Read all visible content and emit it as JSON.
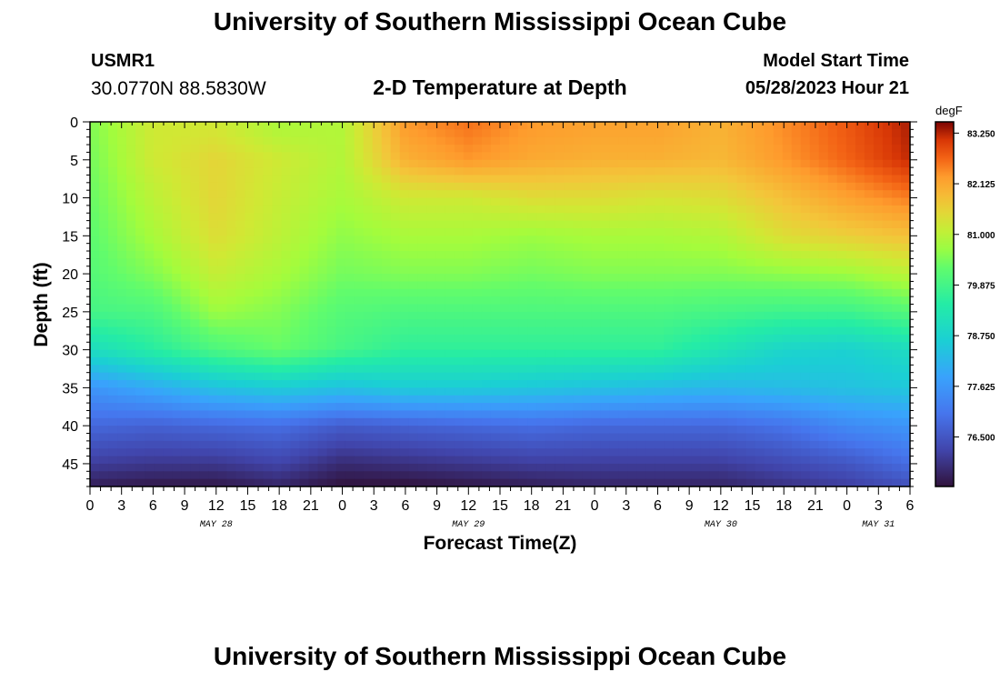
{
  "header": {
    "title": "University of Southern Mississippi Ocean Cube",
    "station_id": "USMR1",
    "station_location": "30.0770N  88.5830W",
    "subtitle": "2-D Temperature at Depth",
    "model_start_label": "Model Start Time",
    "model_start_value": "05/28/2023 Hour 21"
  },
  "footer": {
    "title": "University of Southern Mississippi Ocean Cube"
  },
  "chart_data": {
    "type": "heatmap",
    "xlabel": "Forecast Time(Z)",
    "ylabel": "Depth (ft)",
    "x_tick_labels": [
      "0",
      "3",
      "6",
      "9",
      "12",
      "15",
      "18",
      "21",
      "0",
      "3",
      "6",
      "9",
      "12",
      "15",
      "18",
      "21",
      "0",
      "3",
      "6",
      "9",
      "12",
      "15",
      "18",
      "21",
      "0",
      "3",
      "6"
    ],
    "y_tick_labels": [
      "0",
      "5",
      "10",
      "15",
      "20",
      "25",
      "30",
      "35",
      "40",
      "45"
    ],
    "ylim": [
      0,
      48
    ],
    "day_labels": [
      "MAY 28",
      "MAY 29",
      "MAY 30",
      "MAY 31"
    ],
    "colorbar": {
      "unit": "degF",
      "tick_labels": [
        "83.250",
        "82.125",
        "81.000",
        "79.875",
        "78.750",
        "77.625",
        "76.500"
      ],
      "range": [
        75.4,
        83.5
      ]
    },
    "x_hours": [
      0,
      6,
      12,
      18,
      24,
      30,
      36,
      42,
      48,
      54,
      60,
      66,
      72,
      78
    ],
    "depths": [
      0,
      5,
      10,
      15,
      20,
      25,
      30,
      35,
      40,
      45,
      48
    ],
    "temperature": [
      [
        80.5,
        81.2,
        81.2,
        80.8,
        80.9,
        82.3,
        82.6,
        82.3,
        82.2,
        82.2,
        82.0,
        82.4,
        82.8,
        83.3
      ],
      [
        80.4,
        81.2,
        81.5,
        81.2,
        80.9,
        82.0,
        82.3,
        82.1,
        82.0,
        82.0,
        81.9,
        82.3,
        82.7,
        83.2
      ],
      [
        80.3,
        81.0,
        81.5,
        81.1,
        80.8,
        81.2,
        81.2,
        81.4,
        81.4,
        81.3,
        81.4,
        81.8,
        82.2,
        82.5
      ],
      [
        80.2,
        80.8,
        81.4,
        81.0,
        80.6,
        80.8,
        80.8,
        80.7,
        80.8,
        80.8,
        80.9,
        81.4,
        81.6,
        81.8
      ],
      [
        80.1,
        80.5,
        81.1,
        80.8,
        80.4,
        80.5,
        80.5,
        80.4,
        80.5,
        80.5,
        80.5,
        80.6,
        80.7,
        81.0
      ],
      [
        79.9,
        80.0,
        80.7,
        80.5,
        80.1,
        80.0,
        80.0,
        80.0,
        80.0,
        80.0,
        79.9,
        79.8,
        79.8,
        80.1
      ],
      [
        79.0,
        79.5,
        80.0,
        80.3,
        79.9,
        79.6,
        79.6,
        79.6,
        79.6,
        79.6,
        79.2,
        78.8,
        78.7,
        79.0
      ],
      [
        77.6,
        78.0,
        78.4,
        78.6,
        78.4,
        78.6,
        78.6,
        78.5,
        78.4,
        78.3,
        78.2,
        78.3,
        78.4,
        78.5
      ],
      [
        76.8,
        76.7,
        76.8,
        76.9,
        76.6,
        76.7,
        76.8,
        76.9,
        76.8,
        76.8,
        76.8,
        77.0,
        77.4,
        77.6
      ],
      [
        76.1,
        76.0,
        76.0,
        76.2,
        75.8,
        75.9,
        76.0,
        76.1,
        76.1,
        76.1,
        76.1,
        76.3,
        76.5,
        76.9
      ],
      [
        75.6,
        75.5,
        75.5,
        75.7,
        75.4,
        75.4,
        75.5,
        75.6,
        75.7,
        75.7,
        75.7,
        75.9,
        76.1,
        76.4
      ]
    ]
  }
}
